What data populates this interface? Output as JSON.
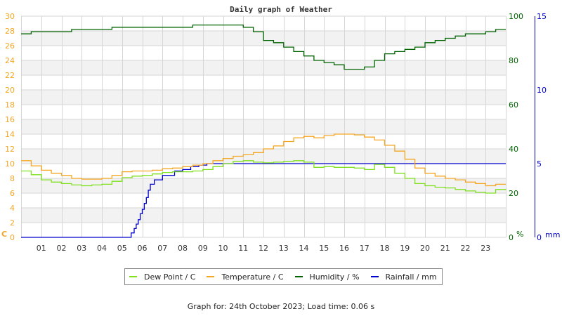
{
  "chart_data": {
    "type": "line",
    "title": "Daily graph of Weather",
    "xlabel": "",
    "x_tick_labels": [
      "01",
      "02",
      "03",
      "04",
      "05",
      "06",
      "07",
      "08",
      "09",
      "10",
      "11",
      "12",
      "13",
      "14",
      "15",
      "16",
      "17",
      "18",
      "19",
      "20",
      "21",
      "22",
      "23"
    ],
    "x_range_hours": [
      0,
      24
    ],
    "grid": true,
    "legend_position": "bottom",
    "axes": {
      "left": {
        "label": "C",
        "range": [
          0,
          30
        ],
        "ticks": [
          0,
          2,
          4,
          6,
          8,
          10,
          12,
          14,
          16,
          18,
          20,
          22,
          24,
          26,
          28,
          30
        ],
        "color": "#f5a623"
      },
      "right_humidity": {
        "label": "%",
        "range": [
          0,
          100
        ],
        "ticks": [
          0,
          20,
          40,
          60,
          80,
          100
        ],
        "color": "#006400"
      },
      "right_rainfall": {
        "label": "mm",
        "range": [
          0,
          15
        ],
        "ticks": [
          0,
          5,
          10,
          15
        ],
        "color": "#0000cc"
      }
    },
    "series": [
      {
        "name": "Dew Point / C",
        "axis": "left",
        "color": "#7fe01f",
        "x": [
          0,
          0.5,
          1,
          1.5,
          2,
          2.5,
          3,
          3.5,
          4,
          4.5,
          5,
          5.5,
          6,
          6.5,
          7,
          7.5,
          8,
          8.5,
          9,
          9.5,
          10,
          10.5,
          11,
          11.5,
          12,
          12.5,
          13,
          13.5,
          14,
          14.5,
          15,
          15.5,
          16,
          16.5,
          17,
          17.5,
          18,
          18.5,
          19,
          19.5,
          20,
          20.5,
          21,
          21.5,
          22,
          22.5,
          23,
          23.5,
          24
        ],
        "values": [
          9.0,
          8.5,
          7.8,
          7.5,
          7.3,
          7.1,
          7.0,
          7.1,
          7.2,
          7.6,
          8.1,
          8.3,
          8.4,
          8.6,
          8.8,
          8.9,
          8.9,
          9.0,
          9.2,
          9.6,
          10.0,
          10.3,
          10.4,
          10.2,
          10.1,
          10.2,
          10.3,
          10.4,
          10.2,
          9.5,
          9.6,
          9.5,
          9.5,
          9.4,
          9.2,
          9.9,
          9.5,
          8.7,
          8.0,
          7.3,
          7.0,
          6.8,
          6.7,
          6.5,
          6.3,
          6.1,
          6.0,
          6.5,
          6.4
        ]
      },
      {
        "name": "Temperature / C",
        "axis": "left",
        "color": "#f5a623",
        "x": [
          0,
          0.5,
          1,
          1.5,
          2,
          2.5,
          3,
          3.5,
          4,
          4.5,
          5,
          5.5,
          6,
          6.5,
          7,
          7.5,
          8,
          8.5,
          9,
          9.5,
          10,
          10.5,
          11,
          11.5,
          12,
          12.5,
          13,
          13.5,
          14,
          14.5,
          15,
          15.5,
          16,
          16.5,
          17,
          17.5,
          18,
          18.5,
          19,
          19.5,
          20,
          20.5,
          21,
          21.5,
          22,
          22.5,
          23,
          23.5,
          24
        ],
        "values": [
          10.4,
          9.7,
          9.1,
          8.7,
          8.4,
          8.0,
          7.9,
          7.9,
          8.0,
          8.4,
          8.9,
          9.0,
          9.0,
          9.1,
          9.3,
          9.4,
          9.6,
          9.8,
          10.0,
          10.4,
          10.7,
          11.0,
          11.2,
          11.5,
          12.0,
          12.4,
          13.0,
          13.5,
          13.7,
          13.5,
          13.8,
          14.0,
          14.0,
          13.9,
          13.6,
          13.2,
          12.5,
          11.7,
          10.6,
          9.4,
          8.7,
          8.3,
          8.0,
          7.8,
          7.5,
          7.3,
          7.0,
          7.2,
          7.2
        ]
      },
      {
        "name": "Humidity / %",
        "axis": "right_humidity",
        "color": "#006400",
        "x": [
          0,
          0.5,
          1,
          1.5,
          2,
          2.5,
          3,
          3.5,
          4,
          4.5,
          5,
          5.5,
          6,
          6.5,
          7,
          7.5,
          8,
          8.5,
          9,
          9.5,
          10,
          10.5,
          11,
          11.5,
          12,
          12.5,
          13,
          13.5,
          14,
          14.5,
          15,
          15.5,
          16,
          16.5,
          17,
          17.5,
          18,
          18.5,
          19,
          19.5,
          20,
          20.5,
          21,
          21.5,
          22,
          22.5,
          23,
          23.5,
          24
        ],
        "values": [
          92,
          93,
          93,
          93,
          93,
          94,
          94,
          94,
          94,
          95,
          95,
          95,
          95,
          95,
          95,
          95,
          95,
          96,
          96,
          96,
          96,
          96,
          95,
          93,
          89,
          88,
          86,
          84,
          82,
          80,
          79,
          78,
          76,
          76,
          77,
          80,
          83,
          84,
          85,
          86,
          88,
          89,
          90,
          91,
          92,
          92,
          93,
          94,
          94
        ]
      },
      {
        "name": "Rainfall / mm",
        "axis": "right_rainfall",
        "color": "#0000cc",
        "x": [
          0,
          5.4,
          5.45,
          5.6,
          5.7,
          5.8,
          5.9,
          6.0,
          6.1,
          6.2,
          6.3,
          6.4,
          6.6,
          6.9,
          7.0,
          7.3,
          7.6,
          8.0,
          8.4,
          8.8,
          9.2,
          10.0,
          24
        ],
        "values": [
          0,
          0,
          0.3,
          0.6,
          0.9,
          1.2,
          1.6,
          1.9,
          2.3,
          2.7,
          3.2,
          3.6,
          3.9,
          3.9,
          4.2,
          4.2,
          4.5,
          4.6,
          4.8,
          4.9,
          5.0,
          5.0,
          5.0
        ]
      }
    ]
  },
  "legend": {
    "items": [
      {
        "label": "Dew Point / C",
        "color": "#7fe01f"
      },
      {
        "label": "Temperature / C",
        "color": "#f5a623"
      },
      {
        "label": "Humidity / %",
        "color": "#006400"
      },
      {
        "label": "Rainfall / mm",
        "color": "#0000cc"
      }
    ]
  },
  "footer": {
    "text": "Graph for: 24th October 2023; Load time: 0.06 s"
  }
}
